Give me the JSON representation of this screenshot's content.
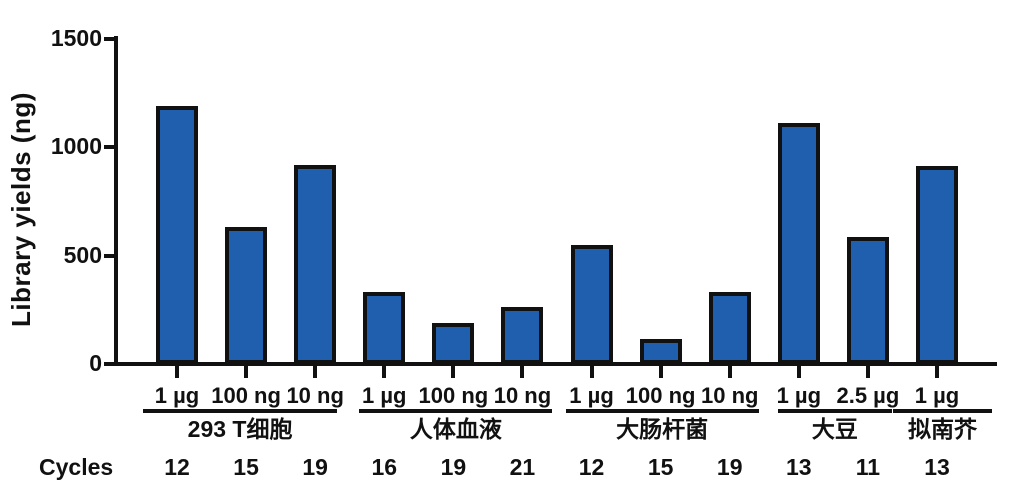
{
  "chart_data": {
    "type": "bar",
    "title": "",
    "ylabel": "Library yields (ng)",
    "xlabel": "",
    "ylim": [
      0,
      1500
    ],
    "yticks": [
      0,
      500,
      1000,
      1500
    ],
    "grid": false,
    "legend": false,
    "bar_fill_color": "#1f5fae",
    "bar_border_color": "#111111",
    "cycles_row_label": "Cycles",
    "groups": [
      {
        "name": "293 T细胞",
        "bars": [
          {
            "input": "1 µg",
            "cycles": "12",
            "yield_ng": 1190
          },
          {
            "input": "100 ng",
            "cycles": "15",
            "yield_ng": 630
          },
          {
            "input": "10 ng",
            "cycles": "19",
            "yield_ng": 920
          }
        ]
      },
      {
        "name": "人体血液",
        "bars": [
          {
            "input": "1 µg",
            "cycles": "16",
            "yield_ng": 330
          },
          {
            "input": "100 ng",
            "cycles": "19",
            "yield_ng": 190
          },
          {
            "input": "10 ng",
            "cycles": "21",
            "yield_ng": 265
          }
        ]
      },
      {
        "name": "大肠杆菌",
        "bars": [
          {
            "input": "1 µg",
            "cycles": "12",
            "yield_ng": 550
          },
          {
            "input": "100 ng",
            "cycles": "15",
            "yield_ng": 115
          },
          {
            "input": "10 ng",
            "cycles": "19",
            "yield_ng": 330
          }
        ]
      },
      {
        "name": "大豆",
        "bars": [
          {
            "input": "1 µg",
            "cycles": "13",
            "yield_ng": 1110
          },
          {
            "input": "2.5 µg",
            "cycles": "11",
            "yield_ng": 585
          }
        ]
      },
      {
        "name": "拟南芥",
        "bars": [
          {
            "input": "1 µg",
            "cycles": "13",
            "yield_ng": 915
          }
        ]
      }
    ]
  }
}
